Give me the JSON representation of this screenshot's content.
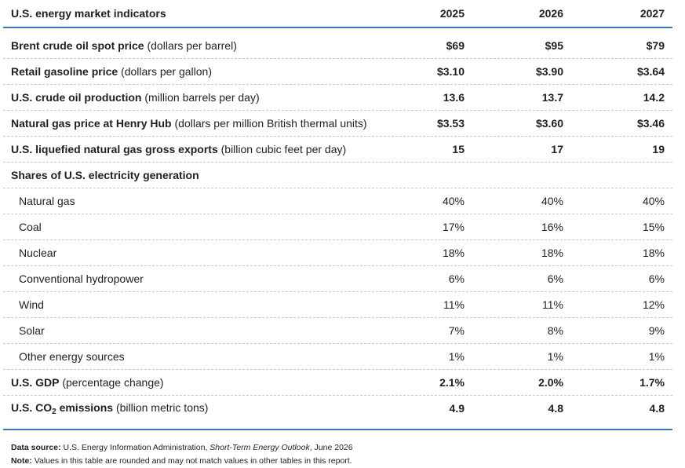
{
  "table": {
    "title": "U.S. energy market indicators",
    "years": [
      "2025",
      "2026",
      "2027"
    ],
    "rows": [
      {
        "label_bold": "Brent crude oil spot price",
        "label_rest": " (dollars per barrel)",
        "values": [
          "$69",
          "$95",
          "$79"
        ]
      },
      {
        "label_bold": "Retail gasoline price",
        "label_rest": " (dollars per gallon)",
        "values": [
          "$3.10",
          "$3.90",
          "$3.64"
        ]
      },
      {
        "label_bold": "U.S. crude oil production",
        "label_rest": " (million barrels per day)",
        "values": [
          "13.6",
          "13.7",
          "14.2"
        ]
      },
      {
        "label_bold": "Natural gas price at Henry Hub",
        "label_rest": " (dollars per million British thermal units)",
        "values": [
          "$3.53",
          "$3.60",
          "$3.46"
        ]
      },
      {
        "label_bold": "U.S. liquefied natural gas gross exports",
        "label_rest": " (billion cubic feet per day)",
        "values": [
          "15",
          "17",
          "19"
        ]
      }
    ],
    "shares_heading": "Shares of U.S. electricity generation",
    "shares": [
      {
        "label": "Natural gas",
        "values": [
          "40%",
          "40%",
          "40%"
        ]
      },
      {
        "label": "Coal",
        "values": [
          "17%",
          "16%",
          "15%"
        ]
      },
      {
        "label": "Nuclear",
        "values": [
          "18%",
          "18%",
          "18%"
        ]
      },
      {
        "label": "Conventional hydropower",
        "values": [
          "6%",
          "6%",
          "6%"
        ]
      },
      {
        "label": "Wind",
        "values": [
          "11%",
          "11%",
          "12%"
        ]
      },
      {
        "label": "Solar",
        "values": [
          "7%",
          "8%",
          "9%"
        ]
      },
      {
        "label": "Other energy sources",
        "values": [
          "1%",
          "1%",
          "1%"
        ]
      }
    ],
    "gdp": {
      "label_bold": "U.S. GDP",
      "label_rest": " (percentage change)",
      "values": [
        "2.1%",
        "2.0%",
        "1.7%"
      ]
    },
    "co2": {
      "label_bold_pre": "U.S. CO",
      "label_sub": "2",
      "label_bold_post": " emissions",
      "label_rest": " (billion metric tons)",
      "values": [
        "4.9",
        "4.8",
        "4.8"
      ]
    }
  },
  "notes": {
    "source_label": "Data source:",
    "source_pre": " U.S. Energy Information Administration, ",
    "source_italic": "Short-Term Energy Outlook",
    "source_post": ", June 2026",
    "note_label": "Note:",
    "note_text": " Values in this table are rounded and may not match values in other tables in this report."
  },
  "colors": {
    "accent": "#3a78b8"
  }
}
